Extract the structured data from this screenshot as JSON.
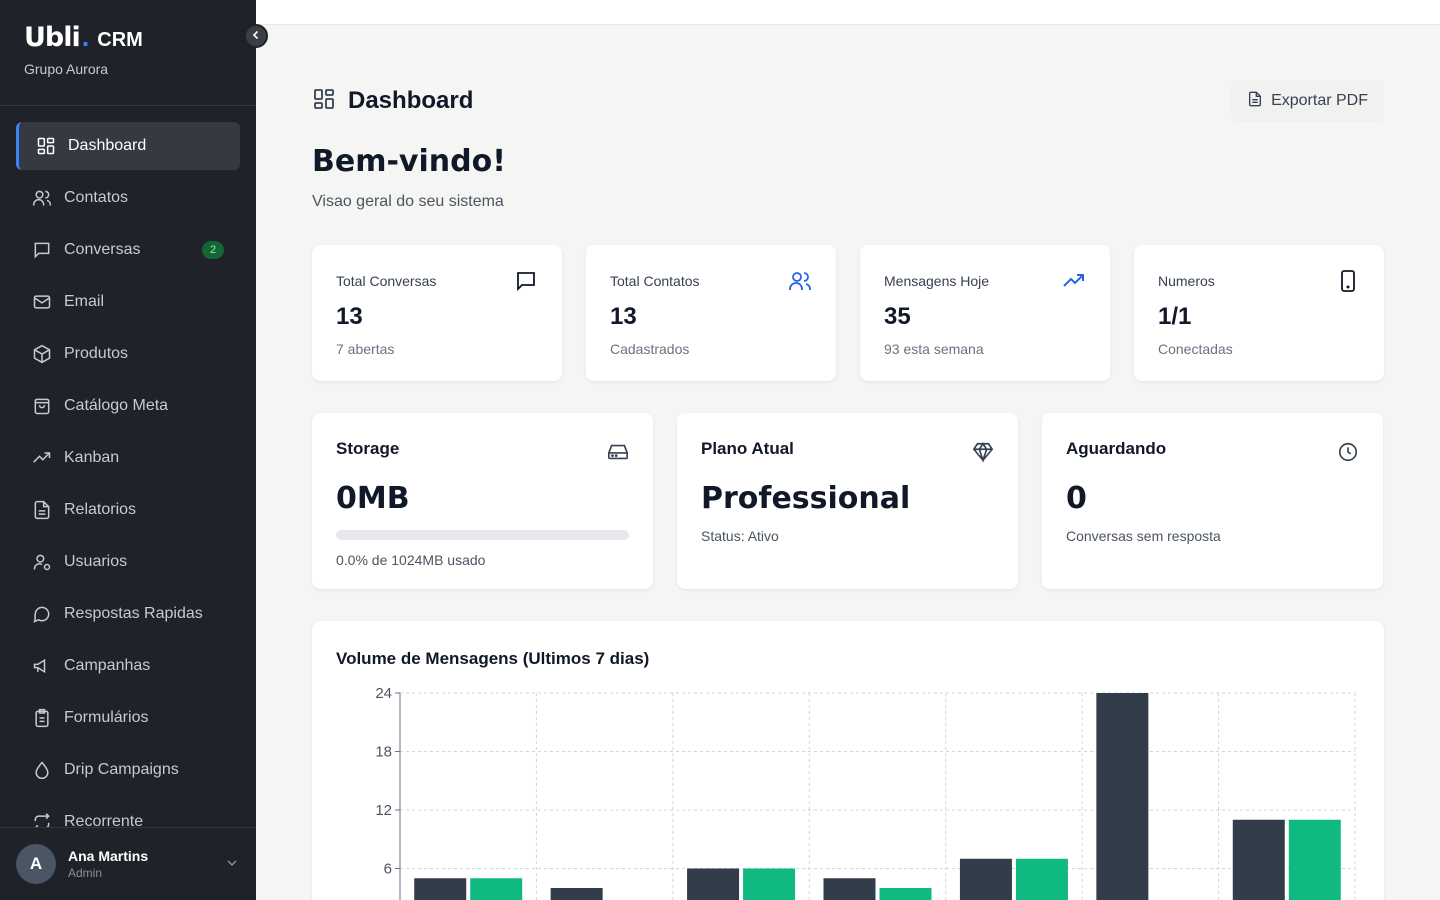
{
  "sidebar": {
    "logo": "Ubli",
    "logo_suffix": "CRM",
    "org": "Grupo Aurora",
    "items": [
      {
        "label": "Dashboard",
        "icon": "grid-icon",
        "active": true
      },
      {
        "label": "Contatos",
        "icon": "users-icon"
      },
      {
        "label": "Conversas",
        "icon": "chat-icon",
        "badge": "2"
      },
      {
        "label": "Email",
        "icon": "mail-icon"
      },
      {
        "label": "Produtos",
        "icon": "box-icon"
      },
      {
        "label": "Catálogo Meta",
        "icon": "bag-icon"
      },
      {
        "label": "Kanban",
        "icon": "trend-icon"
      },
      {
        "label": "Relatorios",
        "icon": "file-icon"
      },
      {
        "label": "Usuarios",
        "icon": "user-gear-icon"
      },
      {
        "label": "Respostas Rapidas",
        "icon": "bubble-icon"
      },
      {
        "label": "Campanhas",
        "icon": "megaphone-icon"
      },
      {
        "label": "Formulários",
        "icon": "clipboard-icon"
      },
      {
        "label": "Drip Campaigns",
        "icon": "drop-icon"
      },
      {
        "label": "Recorrente",
        "icon": "repeat-icon"
      }
    ],
    "user": {
      "initial": "A",
      "name": "Ana Martins",
      "role": "Admin"
    }
  },
  "header": {
    "title": "Dashboard",
    "export_label": "Exportar PDF",
    "welcome": "Bem-vindo!",
    "subtitle": "Visao geral do seu sistema"
  },
  "stats": [
    {
      "label": "Total Conversas",
      "value": "13",
      "sub": "7 abertas",
      "icon": "chat-icon"
    },
    {
      "label": "Total Contatos",
      "value": "13",
      "sub": "Cadastrados",
      "icon": "users-icon"
    },
    {
      "label": "Mensagens Hoje",
      "value": "35",
      "sub": "93 esta semana",
      "icon": "trend-icon"
    },
    {
      "label": "Numeros",
      "value": "1/1",
      "sub": "Conectadas",
      "icon": "phone-icon"
    }
  ],
  "storage": {
    "title": "Storage",
    "value": "0MB",
    "sub": "0.0% de 1024MB usado",
    "used_fraction": 0.0
  },
  "plan": {
    "title": "Plano Atual",
    "value": "Professional",
    "sub": "Status: Ativo"
  },
  "waiting": {
    "title": "Aguardando",
    "value": "0",
    "sub": "Conversas sem resposta"
  },
  "colors": {
    "sidebar_bg": "#1f2329",
    "accent": "#3b82f6",
    "series_dark": "#323c4b",
    "series_green": "#10b981"
  },
  "chart_data": {
    "type": "bar",
    "title": "Volume de Mensagens (Ultimos 7 dias)",
    "categories": [
      "",
      "",
      "",
      "",
      "",
      "",
      ""
    ],
    "series": [
      {
        "values": [
          5,
          4,
          6,
          5,
          7,
          24,
          11
        ]
      },
      {
        "values": [
          5,
          0,
          6,
          4,
          7,
          0,
          11
        ]
      }
    ],
    "ylim": [
      0,
      24
    ],
    "yticks": [
      "24",
      "18",
      "12",
      "6"
    ],
    "grid": true
  }
}
